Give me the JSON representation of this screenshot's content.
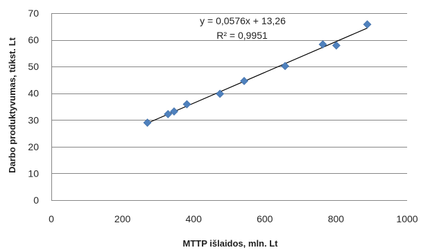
{
  "chart_data": {
    "type": "scatter",
    "title": "",
    "xlabel": "MTTP išlaidos, mln. Lt",
    "ylabel": "Darbo produktyvumas, tūkst. Lt",
    "xlim": [
      0,
      1000
    ],
    "ylim": [
      0,
      70
    ],
    "xticks": [
      0,
      200,
      400,
      600,
      800,
      1000
    ],
    "yticks": [
      0,
      10,
      20,
      30,
      40,
      50,
      60,
      70
    ],
    "grid": "horizontal",
    "legend": "none",
    "series": [
      {
        "color": "#4f81bd",
        "marker": "diamond",
        "points": [
          {
            "x": 270,
            "y": 29
          },
          {
            "x": 328,
            "y": 32.2
          },
          {
            "x": 345,
            "y": 33.2
          },
          {
            "x": 381,
            "y": 35.9
          },
          {
            "x": 474,
            "y": 39.8
          },
          {
            "x": 542,
            "y": 44.6
          },
          {
            "x": 657,
            "y": 50.2
          },
          {
            "x": 763,
            "y": 58.3
          },
          {
            "x": 801,
            "y": 57.9
          },
          {
            "x": 888,
            "y": 65.8
          }
        ]
      }
    ],
    "trendline": {
      "type": "linear",
      "slope": 0.0576,
      "intercept": 13.26,
      "x_start": 270,
      "x_end": 888,
      "equation_label": "y = 0,0576x + 13,26",
      "r2_label": "R² = 0,9951"
    }
  }
}
